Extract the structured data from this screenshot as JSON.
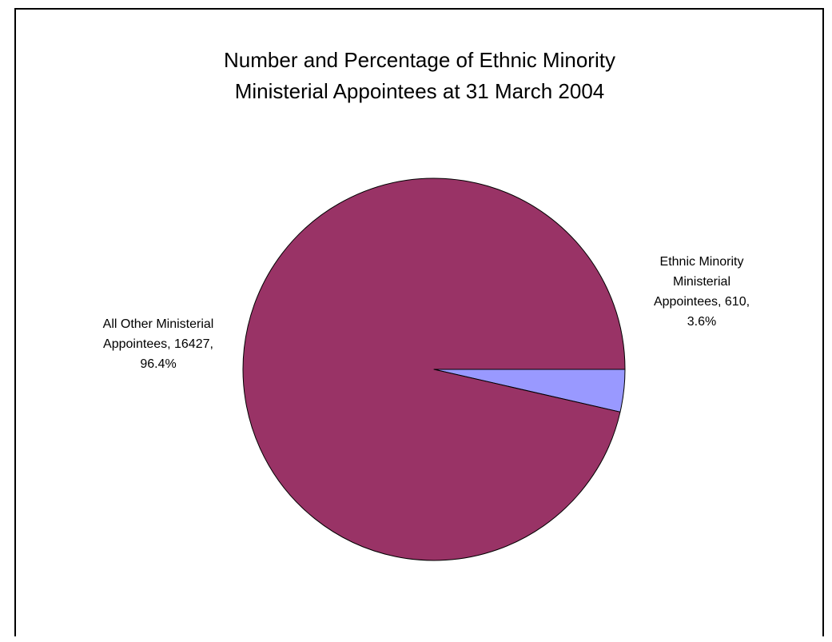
{
  "chart_data": {
    "type": "pie",
    "title": "Number and Percentage of Ethnic Minority Ministerial Appointees at 31 March 2004",
    "title_lines": [
      "Number and Percentage of Ethnic Minority",
      "Ministerial Appointees at 31 March 2004"
    ],
    "slices": [
      {
        "name": "Ethnic Minority Ministerial Appointees",
        "value": 610,
        "percent": 3.6,
        "color": "#9999ff",
        "label_lines": [
          "Ethnic Minority",
          "Ministerial",
          "Appointees, 610,",
          "3.6%"
        ]
      },
      {
        "name": "All Other Ministerial Appointees",
        "value": 16427,
        "percent": 96.4,
        "color": "#993366",
        "label_lines": [
          "All Other Ministerial",
          "Appointees, 16427,",
          "96.4%"
        ]
      }
    ],
    "start_angle": "3 o'clock, clockwise",
    "legend": "none"
  }
}
